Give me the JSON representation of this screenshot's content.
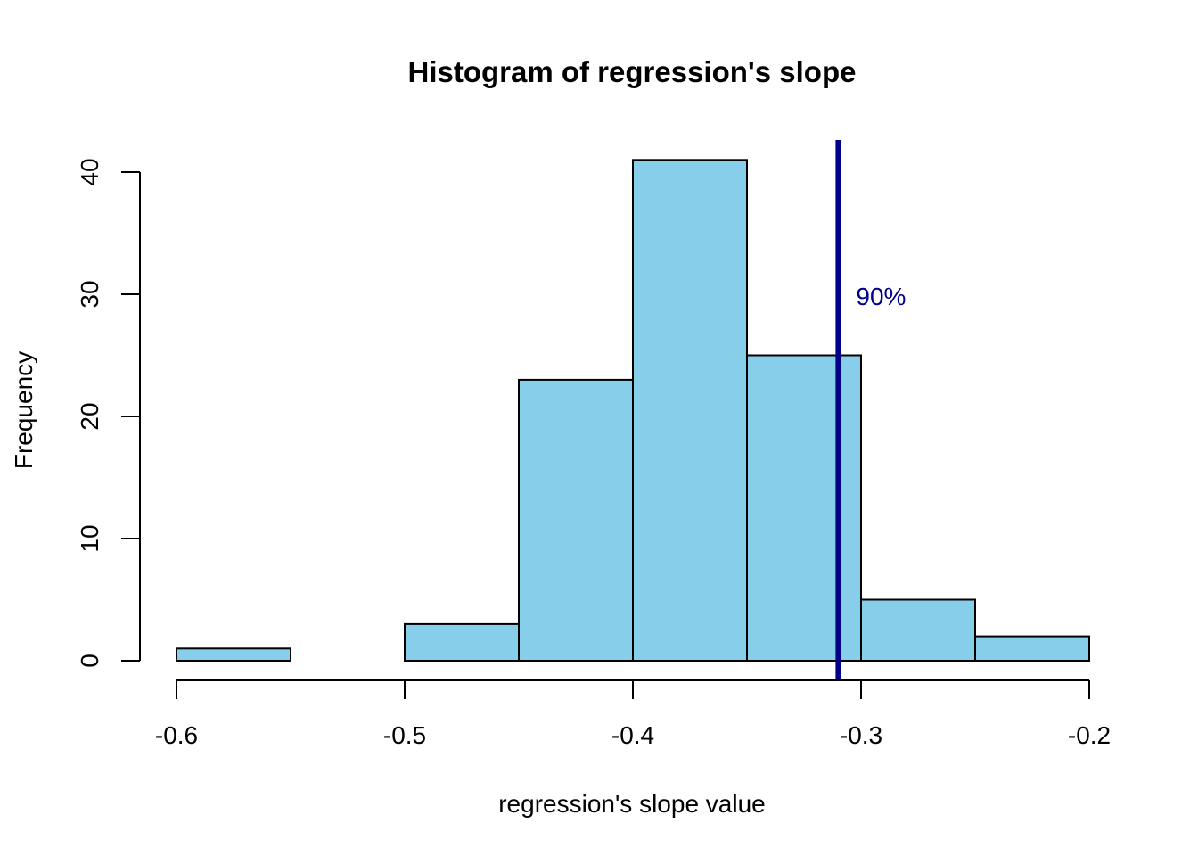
{
  "chart_data": {
    "type": "bar",
    "title": "Histogram of regression's slope",
    "xlabel": "regression's slope value",
    "ylabel": "Frequency",
    "bin_edges": [
      -0.6,
      -0.55,
      -0.5,
      -0.45,
      -0.4,
      -0.35,
      -0.3,
      -0.25,
      -0.2
    ],
    "values": [
      1,
      0,
      3,
      23,
      41,
      25,
      5,
      2
    ],
    "xlim": [
      -0.6,
      -0.2
    ],
    "ylim": [
      0,
      40
    ],
    "x_ticks": [
      -0.6,
      -0.5,
      -0.4,
      -0.3,
      -0.2
    ],
    "x_tick_labels": [
      "-0.6",
      "-0.5",
      "-0.4",
      "-0.3",
      "-0.2"
    ],
    "y_ticks": [
      0,
      10,
      20,
      30,
      40
    ],
    "y_tick_labels": [
      "0",
      "10",
      "20",
      "30",
      "40"
    ],
    "bar_color": "#87CEEB",
    "bar_border_color": "#000000",
    "grid": false,
    "reference_line": {
      "x": -0.31,
      "label": "90%",
      "color": "#00008B"
    }
  }
}
